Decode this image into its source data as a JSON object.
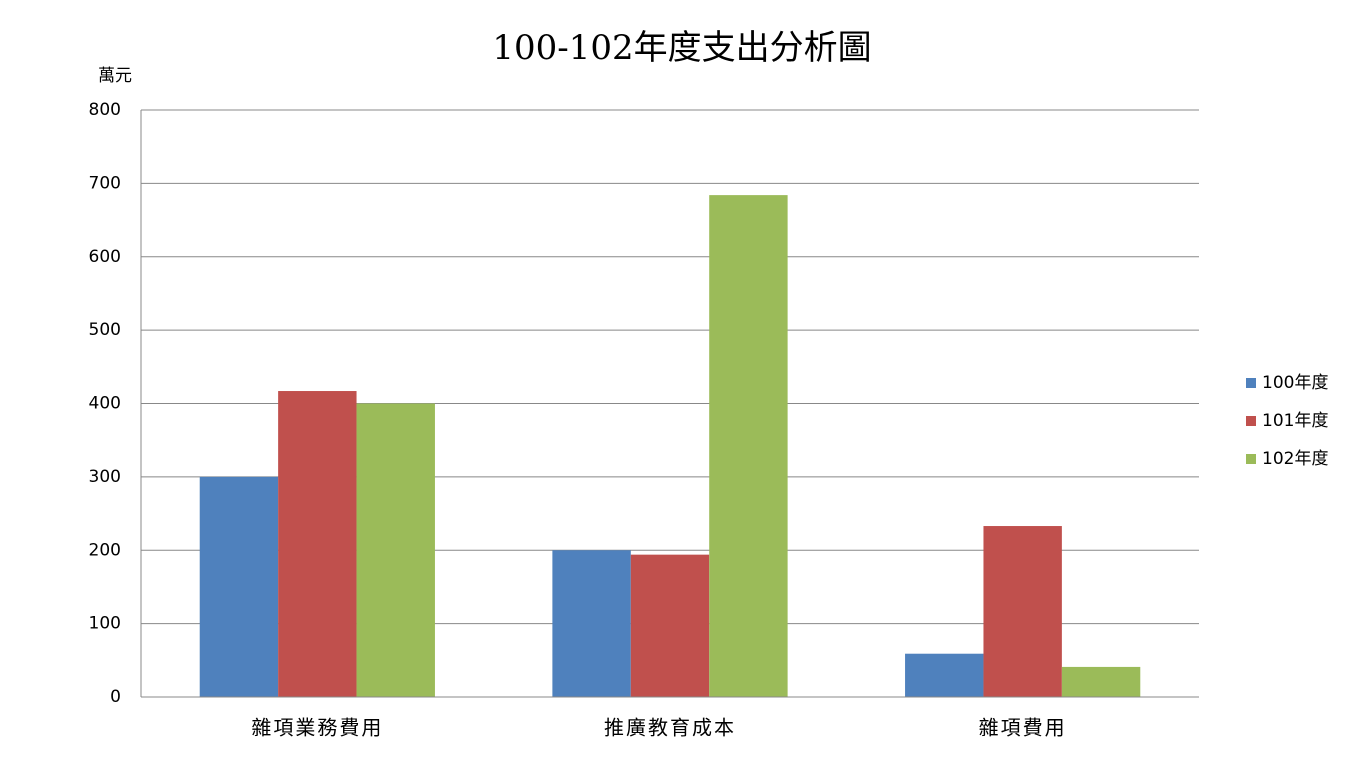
{
  "chart_data": {
    "type": "bar",
    "title": "100-102年度支出分析圖",
    "y_axis_label": "萬元",
    "categories": [
      "雜項業務費用",
      "推廣教育成本",
      "雜項費用"
    ],
    "series": [
      {
        "name": "100年度",
        "color": "#4f81bd",
        "values": [
          300,
          200,
          59
        ]
      },
      {
        "name": "101年度",
        "color": "#c0504d",
        "values": [
          417,
          194,
          233
        ]
      },
      {
        "name": "102年度",
        "color": "#9bbb59",
        "values": [
          400,
          684,
          41
        ]
      }
    ],
    "ylim": [
      0,
      800
    ],
    "yticks": [
      0,
      100,
      200,
      300,
      400,
      500,
      600,
      700,
      800
    ],
    "grid": true,
    "legend": "right"
  }
}
